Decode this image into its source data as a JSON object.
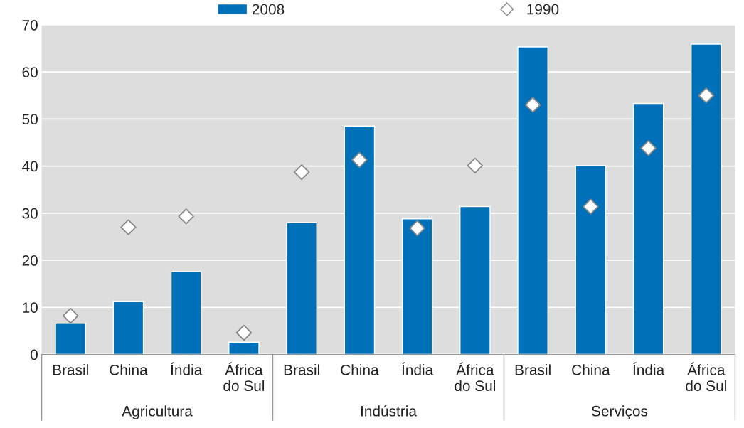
{
  "chart_data": {
    "type": "bar",
    "categories": [
      "Brasil",
      "China",
      "Índia",
      "África\ndo Sul",
      "Brasil",
      "China",
      "Índia",
      "África\ndo Sul",
      "Brasil",
      "China",
      "Índia",
      "África\ndo Sul"
    ],
    "series": [
      {
        "name": "2008",
        "color": "#0070b8",
        "values": [
          6.6,
          11.2,
          17.6,
          2.6,
          28.0,
          48.5,
          28.8,
          31.4,
          65.3,
          40.1,
          53.3,
          65.9
        ]
      },
      {
        "name": "1990",
        "type": "scatter",
        "marker": "diamond",
        "color": "#ffffff",
        "values": [
          8.2,
          27.0,
          29.3,
          4.6,
          38.7,
          41.3,
          26.8,
          40.1,
          53.0,
          31.4,
          43.8,
          55.0
        ]
      }
    ],
    "annotations": [
      "Agricultura",
      "Indústria",
      "Serviços"
    ],
    "ylim": [
      0,
      70
    ],
    "yticks": [
      0,
      10,
      20,
      30,
      40,
      50,
      60,
      70
    ],
    "grid": "y",
    "legend": "top"
  }
}
